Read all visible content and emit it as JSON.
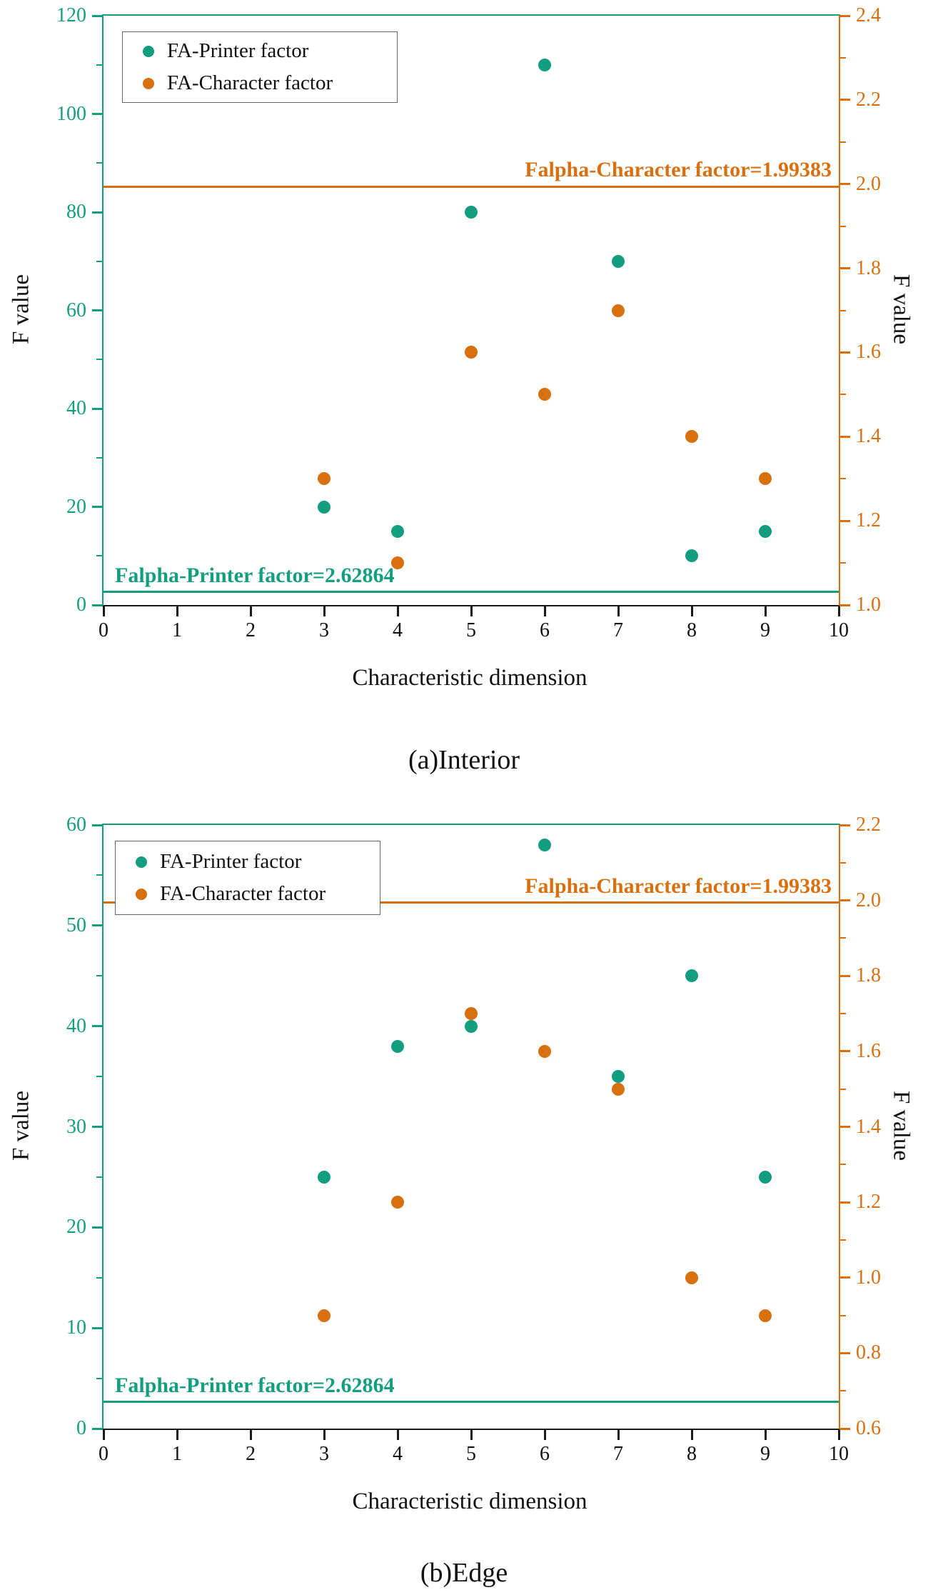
{
  "colors": {
    "printer": "#149e80",
    "character": "#d9700f",
    "axis_black": "#1a1a1a"
  },
  "chart_data": [
    {
      "type": "scatter",
      "caption": "(a)Interior",
      "xlabel": "Characteristic dimension",
      "ylabel_left": "F value",
      "ylabel_right": "F value",
      "x_range": [
        0,
        10
      ],
      "x_ticks": [
        "0",
        "1",
        "2",
        "3",
        "4",
        "5",
        "6",
        "7",
        "8",
        "9",
        "10"
      ],
      "left_axis": {
        "range": [
          0,
          120
        ],
        "ticks": [
          "0",
          "20",
          "40",
          "60",
          "80",
          "100",
          "120"
        ],
        "minor_step": 10,
        "color": "printer"
      },
      "right_axis": {
        "range": [
          1.0,
          2.4
        ],
        "ticks": [
          "1.0",
          "1.2",
          "1.4",
          "1.6",
          "1.8",
          "2.0",
          "2.2",
          "2.4"
        ],
        "minor_step": 0.1,
        "color": "character"
      },
      "legend": [
        {
          "label": "FA-Printer factor",
          "color": "printer"
        },
        {
          "label": "FA-Character factor",
          "color": "character"
        }
      ],
      "series": [
        {
          "name": "FA-Printer factor",
          "axis": "left",
          "color": "printer",
          "x": [
            3,
            4,
            5,
            6,
            7,
            8,
            9
          ],
          "y": [
            20,
            15,
            80,
            110,
            70,
            10,
            15
          ]
        },
        {
          "name": "FA-Character factor",
          "axis": "right",
          "color": "character",
          "x": [
            3,
            4,
            5,
            6,
            7,
            8,
            9
          ],
          "y": [
            1.3,
            1.1,
            1.6,
            1.5,
            1.7,
            1.4,
            1.3
          ]
        }
      ],
      "ref_lines": [
        {
          "axis": "right",
          "value": 1.99383,
          "color": "character",
          "label": "Falpha-Character factor=1.99383",
          "align": "right"
        },
        {
          "axis": "left",
          "value": 2.62864,
          "color": "printer",
          "label": "Falpha-Printer factor=2.62864",
          "align": "left"
        }
      ]
    },
    {
      "type": "scatter",
      "caption": "(b)Edge",
      "xlabel": "Characteristic dimension",
      "ylabel_left": "F value",
      "ylabel_right": "F value",
      "x_range": [
        0,
        10
      ],
      "x_ticks": [
        "0",
        "1",
        "2",
        "3",
        "4",
        "5",
        "6",
        "7",
        "8",
        "9",
        "10"
      ],
      "left_axis": {
        "range": [
          0,
          60
        ],
        "ticks": [
          "0",
          "10",
          "20",
          "30",
          "40",
          "50",
          "60"
        ],
        "minor_step": 5,
        "color": "printer"
      },
      "right_axis": {
        "range": [
          0.6,
          2.2
        ],
        "ticks": [
          "0.6",
          "0.8",
          "1.0",
          "1.2",
          "1.4",
          "1.6",
          "1.8",
          "2.0",
          "2.2"
        ],
        "minor_step": 0.1,
        "color": "character"
      },
      "legend": [
        {
          "label": "FA-Printer factor",
          "color": "printer"
        },
        {
          "label": "FA-Character factor",
          "color": "character"
        }
      ],
      "series": [
        {
          "name": "FA-Printer factor",
          "axis": "left",
          "color": "printer",
          "x": [
            3,
            4,
            5,
            6,
            7,
            8,
            9
          ],
          "y": [
            25,
            38,
            40,
            58,
            35,
            45,
            25
          ]
        },
        {
          "name": "FA-Character factor",
          "axis": "right",
          "color": "character",
          "x": [
            3,
            4,
            5,
            6,
            7,
            8,
            9
          ],
          "y": [
            0.9,
            1.2,
            1.7,
            1.6,
            1.5,
            1.0,
            0.9
          ]
        }
      ],
      "ref_lines": [
        {
          "axis": "right",
          "value": 1.99383,
          "color": "character",
          "label": "Falpha-Character factor=1.99383",
          "align": "right"
        },
        {
          "axis": "left",
          "value": 2.62864,
          "color": "printer",
          "label": "Falpha-Printer factor=2.62864",
          "align": "left"
        }
      ]
    }
  ]
}
